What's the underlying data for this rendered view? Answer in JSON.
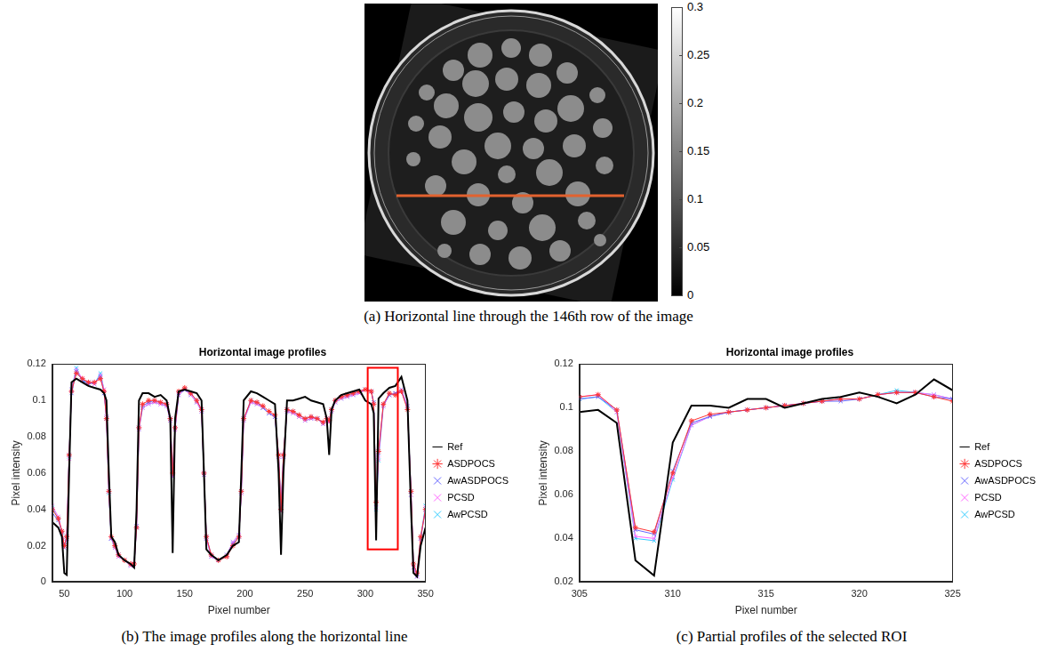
{
  "image_panel": {
    "caption": "(a) Horizontal line through the 146th row of the image",
    "colorbar": {
      "range": [
        0,
        0.3
      ],
      "ticks": [
        0,
        0.05,
        0.1,
        0.15,
        0.2,
        0.25,
        0.3
      ]
    }
  },
  "chart_data": [
    {
      "type": "line",
      "caption": "(b) The image profiles along the horizontal line",
      "title": "Horizontal image profiles",
      "x_label": "Pixel number",
      "y_label": "Pixel intensity",
      "x": [
        40,
        45,
        48,
        50,
        52,
        54,
        56,
        60,
        65,
        70,
        75,
        80,
        83,
        85,
        87,
        89,
        92,
        95,
        100,
        105,
        108,
        110,
        112,
        115,
        120,
        125,
        130,
        135,
        138,
        140,
        142,
        145,
        150,
        155,
        160,
        164,
        166,
        168,
        172,
        178,
        185,
        190,
        195,
        197,
        199,
        205,
        210,
        215,
        220,
        225,
        228,
        230,
        232,
        235,
        240,
        245,
        250,
        255,
        260,
        265,
        268,
        270,
        272,
        275,
        280,
        285,
        290,
        295,
        300,
        305,
        307,
        309,
        311,
        315,
        320,
        325,
        330,
        335,
        338,
        340,
        343,
        346,
        350
      ],
      "series": [
        {
          "name": "Ref",
          "color": "#000000",
          "line_style": "solid",
          "values": [
            0.033,
            0.03,
            0.025,
            0.005,
            0.004,
            0.06,
            0.11,
            0.112,
            0.11,
            0.108,
            0.107,
            0.106,
            0.104,
            0.1,
            0.06,
            0.025,
            0.022,
            0.015,
            0.012,
            0.01,
            0.008,
            0.04,
            0.1,
            0.104,
            0.104,
            0.102,
            0.103,
            0.1,
            0.09,
            0.016,
            0.09,
            0.105,
            0.106,
            0.105,
            0.104,
            0.1,
            0.06,
            0.018,
            0.015,
            0.012,
            0.015,
            0.02,
            0.022,
            0.06,
            0.1,
            0.105,
            0.104,
            0.102,
            0.1,
            0.098,
            0.06,
            0.015,
            0.06,
            0.1,
            0.1,
            0.101,
            0.102,
            0.1,
            0.099,
            0.098,
            0.09,
            0.07,
            0.095,
            0.1,
            0.103,
            0.104,
            0.105,
            0.106,
            0.1,
            0.098,
            0.093,
            0.023,
            0.101,
            0.104,
            0.107,
            0.108,
            0.113,
            0.1,
            0.04,
            0.005,
            0.003,
            0.02,
            0.03
          ]
        },
        {
          "name": "ASDPOCS",
          "color": "#ff3333",
          "marker": "star",
          "line_style": "solid",
          "values": [
            0.04,
            0.035,
            0.028,
            0.02,
            0.025,
            0.07,
            0.105,
            0.115,
            0.112,
            0.11,
            0.11,
            0.112,
            0.105,
            0.09,
            0.05,
            0.025,
            0.02,
            0.015,
            0.012,
            0.01,
            0.01,
            0.03,
            0.085,
            0.098,
            0.1,
            0.1,
            0.099,
            0.098,
            0.09,
            0.06,
            0.085,
            0.105,
            0.107,
            0.104,
            0.1,
            0.095,
            0.06,
            0.025,
            0.015,
            0.012,
            0.014,
            0.02,
            0.025,
            0.05,
            0.09,
            0.1,
            0.099,
            0.097,
            0.094,
            0.092,
            0.07,
            0.04,
            0.07,
            0.095,
            0.094,
            0.092,
            0.09,
            0.091,
            0.09,
            0.088,
            0.09,
            0.089,
            0.095,
            0.1,
            0.102,
            0.103,
            0.104,
            0.105,
            0.106,
            0.105,
            0.098,
            0.044,
            0.072,
            0.098,
            0.104,
            0.103,
            0.105,
            0.095,
            0.05,
            0.01,
            0.005,
            0.025,
            0.04
          ]
        },
        {
          "name": "AwASDPOCS",
          "color": "#6666ff",
          "marker": "x",
          "line_style": "solid",
          "values": [
            0.038,
            0.034,
            0.028,
            0.02,
            0.025,
            0.07,
            0.104,
            0.116,
            0.111,
            0.109,
            0.11,
            0.113,
            0.104,
            0.09,
            0.05,
            0.024,
            0.02,
            0.015,
            0.012,
            0.01,
            0.01,
            0.031,
            0.085,
            0.097,
            0.099,
            0.1,
            0.099,
            0.098,
            0.09,
            0.061,
            0.085,
            0.104,
            0.106,
            0.104,
            0.1,
            0.095,
            0.06,
            0.025,
            0.015,
            0.012,
            0.014,
            0.021,
            0.025,
            0.05,
            0.09,
            0.1,
            0.099,
            0.096,
            0.093,
            0.091,
            0.07,
            0.041,
            0.07,
            0.095,
            0.094,
            0.092,
            0.09,
            0.091,
            0.09,
            0.088,
            0.09,
            0.089,
            0.095,
            0.1,
            0.102,
            0.103,
            0.104,
            0.105,
            0.106,
            0.105,
            0.099,
            0.043,
            0.071,
            0.098,
            0.103,
            0.104,
            0.105,
            0.096,
            0.05,
            0.01,
            0.004,
            0.024,
            0.04
          ]
        },
        {
          "name": "PCSD",
          "color": "#ff66ff",
          "marker": "x",
          "line_style": "solid",
          "values": [
            0.042,
            0.036,
            0.028,
            0.019,
            0.024,
            0.068,
            0.106,
            0.117,
            0.112,
            0.11,
            0.109,
            0.114,
            0.106,
            0.091,
            0.05,
            0.024,
            0.019,
            0.014,
            0.012,
            0.009,
            0.01,
            0.03,
            0.084,
            0.096,
            0.098,
            0.099,
            0.098,
            0.097,
            0.089,
            0.058,
            0.084,
            0.103,
            0.106,
            0.103,
            0.099,
            0.094,
            0.059,
            0.024,
            0.014,
            0.012,
            0.015,
            0.022,
            0.026,
            0.049,
            0.089,
            0.099,
            0.098,
            0.096,
            0.093,
            0.091,
            0.069,
            0.039,
            0.069,
            0.094,
            0.093,
            0.091,
            0.089,
            0.09,
            0.09,
            0.087,
            0.089,
            0.088,
            0.094,
            0.099,
            0.101,
            0.102,
            0.103,
            0.104,
            0.106,
            0.105,
            0.098,
            0.041,
            0.068,
            0.097,
            0.103,
            0.104,
            0.106,
            0.097,
            0.048,
            0.008,
            0.003,
            0.024,
            0.041
          ]
        },
        {
          "name": "AwPCSD",
          "color": "#33ccff",
          "marker": "x",
          "line_style": "solid",
          "values": [
            0.041,
            0.035,
            0.027,
            0.019,
            0.024,
            0.069,
            0.106,
            0.118,
            0.111,
            0.11,
            0.109,
            0.115,
            0.106,
            0.091,
            0.049,
            0.024,
            0.019,
            0.014,
            0.012,
            0.009,
            0.01,
            0.03,
            0.084,
            0.096,
            0.098,
            0.099,
            0.098,
            0.097,
            0.089,
            0.058,
            0.084,
            0.103,
            0.106,
            0.103,
            0.099,
            0.094,
            0.059,
            0.024,
            0.014,
            0.012,
            0.015,
            0.022,
            0.026,
            0.049,
            0.089,
            0.099,
            0.098,
            0.096,
            0.093,
            0.091,
            0.069,
            0.039,
            0.069,
            0.094,
            0.093,
            0.091,
            0.089,
            0.09,
            0.09,
            0.087,
            0.089,
            0.088,
            0.094,
            0.099,
            0.101,
            0.102,
            0.103,
            0.104,
            0.106,
            0.105,
            0.098,
            0.04,
            0.067,
            0.097,
            0.103,
            0.104,
            0.106,
            0.097,
            0.048,
            0.008,
            0.003,
            0.025,
            0.042
          ]
        }
      ],
      "xlim": [
        40,
        350
      ],
      "xticks": [
        50,
        100,
        150,
        200,
        250,
        300,
        350
      ],
      "ylim": [
        0,
        0.12
      ],
      "yticks": [
        0,
        0.02,
        0.04,
        0.06,
        0.08,
        0.1,
        0.12
      ],
      "grid": false,
      "legend": "right",
      "roi_box": {
        "x": [
          302,
          327
        ],
        "y": [
          0.018,
          0.118
        ],
        "color": "#ff0000"
      }
    },
    {
      "type": "line",
      "caption": "(c) Partial profiles of the selected ROI",
      "title": "Horizontal image profiles",
      "x_label": "Pixel number",
      "y_label": "Pixel intensity",
      "x": [
        305,
        306,
        307,
        308,
        309,
        310,
        311,
        312,
        313,
        314,
        315,
        316,
        317,
        318,
        319,
        320,
        321,
        322,
        323,
        324,
        325
      ],
      "series": [
        {
          "name": "Ref",
          "color": "#000000",
          "line_style": "solid",
          "values": [
            0.098,
            0.099,
            0.093,
            0.03,
            0.023,
            0.084,
            0.101,
            0.101,
            0.1,
            0.104,
            0.104,
            0.1,
            0.102,
            0.104,
            0.105,
            0.107,
            0.105,
            0.102,
            0.106,
            0.113,
            0.108
          ]
        },
        {
          "name": "ASDPOCS",
          "color": "#ff3333",
          "marker": "star",
          "line_style": "solid",
          "values": [
            0.105,
            0.106,
            0.099,
            0.045,
            0.043,
            0.07,
            0.094,
            0.097,
            0.098,
            0.099,
            0.1,
            0.101,
            0.102,
            0.103,
            0.104,
            0.104,
            0.106,
            0.107,
            0.107,
            0.105,
            0.103
          ]
        },
        {
          "name": "AwASDPOCS",
          "color": "#6666ff",
          "marker": "x",
          "line_style": "solid",
          "values": [
            0.104,
            0.105,
            0.099,
            0.044,
            0.042,
            0.071,
            0.093,
            0.096,
            0.098,
            0.099,
            0.1,
            0.101,
            0.102,
            0.103,
            0.103,
            0.104,
            0.106,
            0.107,
            0.107,
            0.105,
            0.104
          ]
        },
        {
          "name": "PCSD",
          "color": "#ff66ff",
          "marker": "x",
          "line_style": "solid",
          "values": [
            0.105,
            0.106,
            0.098,
            0.041,
            0.04,
            0.068,
            0.092,
            0.096,
            0.098,
            0.099,
            0.1,
            0.101,
            0.102,
            0.103,
            0.104,
            0.104,
            0.106,
            0.107,
            0.107,
            0.106,
            0.104
          ]
        },
        {
          "name": "AwPCSD",
          "color": "#33ccff",
          "marker": "x",
          "line_style": "solid",
          "values": [
            0.104,
            0.105,
            0.098,
            0.04,
            0.039,
            0.067,
            0.092,
            0.096,
            0.098,
            0.099,
            0.1,
            0.101,
            0.102,
            0.103,
            0.104,
            0.104,
            0.106,
            0.108,
            0.107,
            0.106,
            0.104
          ]
        }
      ],
      "xlim": [
        305,
        325
      ],
      "xticks": [
        305,
        310,
        315,
        320,
        325
      ],
      "ylim": [
        0.02,
        0.12
      ],
      "yticks": [
        0.02,
        0.04,
        0.06,
        0.08,
        0.1,
        0.12
      ],
      "grid": false,
      "legend": "right"
    }
  ]
}
